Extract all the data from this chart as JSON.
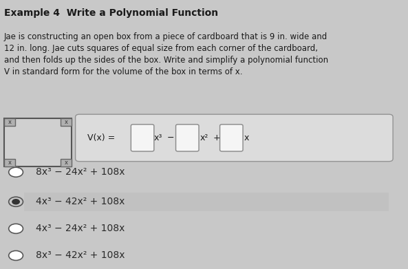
{
  "title": "Example 4  Write a Polynomial Function",
  "body_text": "Jae is constructing an open box from a piece of cardboard that is 9 in. wide and\n12 in. long. Jae cuts squares of equal size from each corner of the cardboard,\nand then folds up the sides of the box. Write and simplify a polynomial function\nV in standard form for the volume of the box in terms of x.",
  "formula_label": "V(x) =",
  "formula": "V(x) = □ x³ − □ x² + □ x",
  "options": [
    {
      "text": "8x³ − 24x² + 108x",
      "selected": false
    },
    {
      "text": "4x³ − 42x² + 108x",
      "selected": true
    },
    {
      "text": "4x³ − 24x² + 108x",
      "selected": false
    },
    {
      "text": "8x³ − 42x² + 108x",
      "selected": false
    }
  ],
  "bg_color": "#c8c8c8",
  "text_color": "#1a1a1a",
  "option_text_color": "#2a2a2a",
  "box_color": "#e8e8e8",
  "formula_box_color": "#d8d8d8",
  "title_fontsize": 10,
  "body_fontsize": 8.5,
  "option_fontsize": 10
}
